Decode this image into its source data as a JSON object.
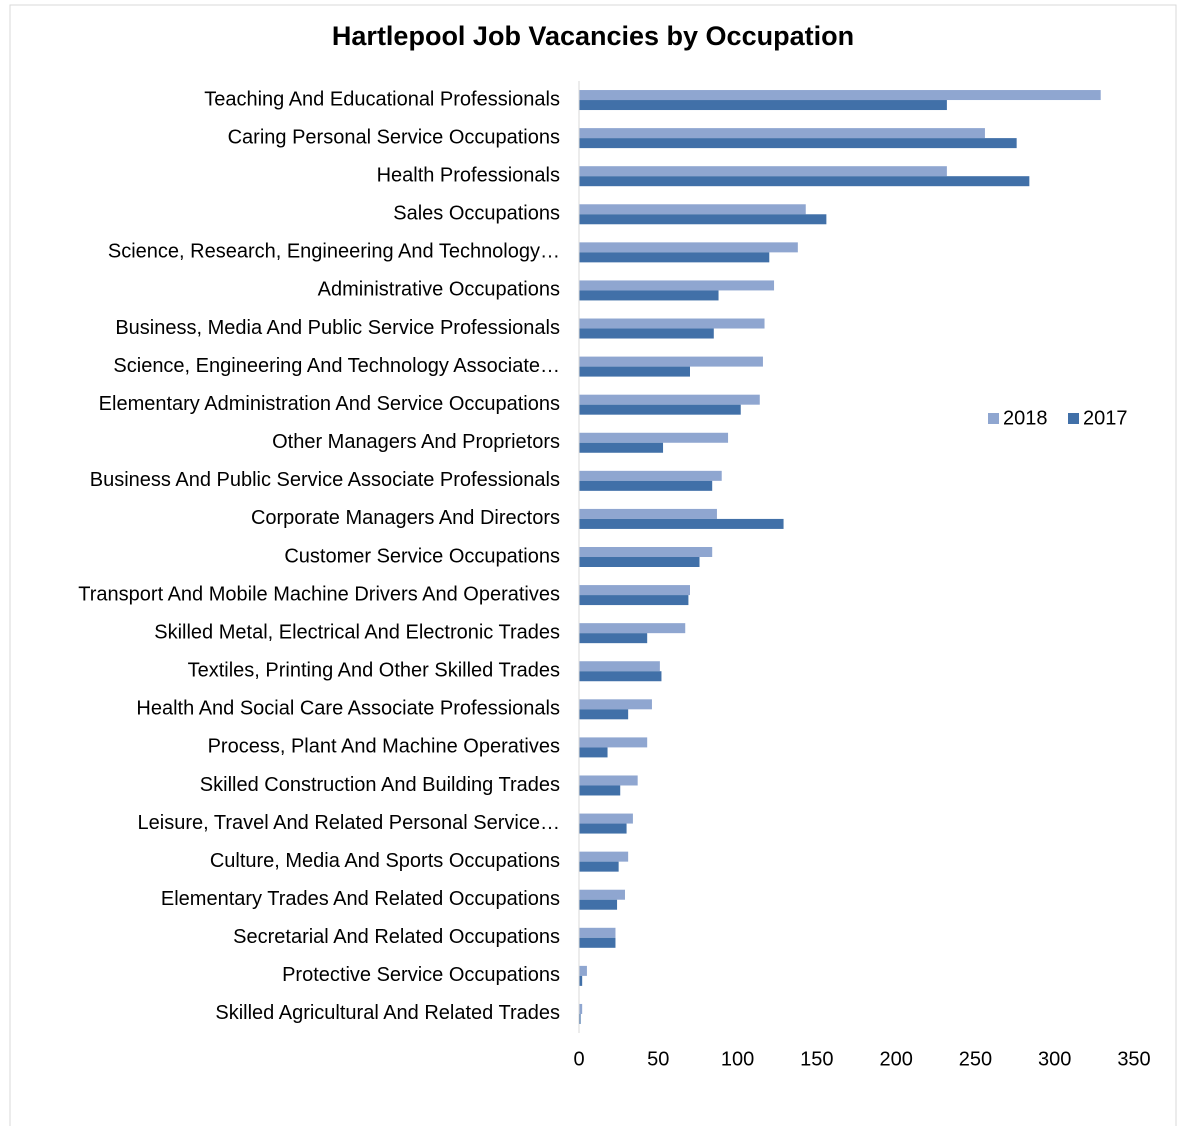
{
  "chart_data": {
    "type": "barh",
    "title": "Hartlepool Job Vacancies by Occupation",
    "categories": [
      "Teaching And Educational Professionals",
      "Caring Personal Service Occupations",
      "Health Professionals",
      "Sales Occupations",
      "Science, Research, Engineering And Technology…",
      "Administrative Occupations",
      "Business, Media And Public Service Professionals",
      "Science, Engineering And Technology Associate…",
      "Elementary Administration And Service Occupations",
      "Other Managers And Proprietors",
      "Business And Public Service Associate Professionals",
      "Corporate Managers And Directors",
      "Customer Service Occupations",
      "Transport And Mobile Machine Drivers And Operatives",
      "Skilled Metal, Electrical And Electronic Trades",
      "Textiles, Printing And Other Skilled Trades",
      "Health And Social Care Associate Professionals",
      "Process, Plant And Machine Operatives",
      "Skilled Construction And Building Trades",
      "Leisure, Travel And Related Personal Service…",
      "Culture, Media And Sports Occupations",
      "Elementary Trades And Related Occupations",
      "Secretarial And Related Occupations",
      "Protective Service Occupations",
      "Skilled Agricultural And Related Trades"
    ],
    "series": [
      {
        "name": "2018",
        "color": "#8fa6d0",
        "values": [
          329,
          256,
          232,
          143,
          138,
          123,
          117,
          116,
          114,
          94,
          90,
          87,
          84,
          70,
          67,
          51,
          46,
          43,
          37,
          34,
          31,
          29,
          23,
          5,
          2
        ]
      },
      {
        "name": "2017",
        "color": "#4170a8",
        "values": [
          232,
          276,
          284,
          156,
          120,
          88,
          85,
          70,
          102,
          53,
          84,
          129,
          76,
          69,
          43,
          52,
          31,
          18,
          26,
          30,
          25,
          24,
          23,
          2,
          1
        ]
      }
    ],
    "xlim": [
      0,
      350
    ],
    "xticks": [
      0,
      50,
      100,
      150,
      200,
      250,
      300,
      350
    ],
    "grid": false,
    "legend": "right"
  }
}
